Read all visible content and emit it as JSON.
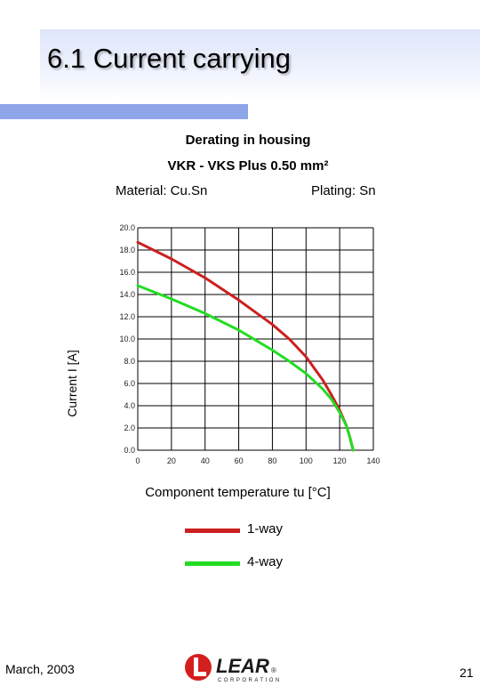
{
  "slide": {
    "title": "6.1 Current carrying",
    "footer_date": "March, 2003",
    "page_number": "21",
    "logo": {
      "name": "LEAR",
      "sub": "CORPORATION"
    }
  },
  "chart_data": {
    "type": "line",
    "title": "Derating in housing",
    "subtitle": "VKR - VKS  Plus 0.50 mm²",
    "material": "Material: Cu.Sn",
    "plating": "Plating: Sn",
    "xlabel": "Component temperature tu [°C]",
    "ylabel": "Current I [A]",
    "xlim": [
      0,
      140
    ],
    "ylim": [
      0,
      20
    ],
    "x_ticks": [
      "0",
      "20",
      "40",
      "60",
      "80",
      "100",
      "120",
      "140"
    ],
    "y_ticks": [
      "0.0",
      "2.0",
      "4.0",
      "6.0",
      "8.0",
      "10.0",
      "12.0",
      "14.0",
      "16.0",
      "18.0",
      "20.0"
    ],
    "grid": true,
    "series": [
      {
        "name": "1-way",
        "color": "#cc1f1f",
        "x": [
          0,
          20,
          40,
          60,
          80,
          90,
          100,
          110,
          115,
          120,
          124,
          126,
          128
        ],
        "y": [
          18.7,
          17.2,
          15.5,
          13.5,
          11.3,
          10.0,
          8.4,
          6.3,
          5.0,
          3.6,
          2.2,
          1.2,
          0.0
        ]
      },
      {
        "name": "4-way",
        "color": "#22dd22",
        "x": [
          0,
          20,
          40,
          60,
          80,
          90,
          100,
          110,
          115,
          120,
          124,
          126,
          128
        ],
        "y": [
          14.8,
          13.6,
          12.3,
          10.8,
          9.0,
          8.0,
          6.9,
          5.5,
          4.6,
          3.4,
          2.2,
          1.2,
          0.0
        ]
      }
    ]
  }
}
